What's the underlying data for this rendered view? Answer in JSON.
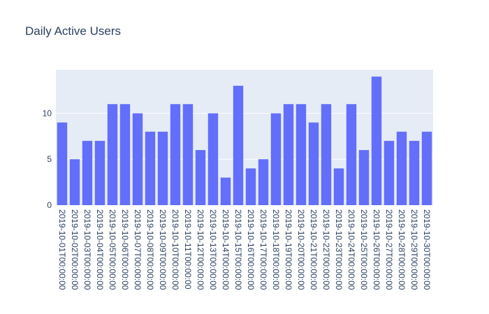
{
  "chart_data": {
    "type": "bar",
    "title": "Daily Active Users",
    "xlabel": "",
    "ylabel": "",
    "categories": [
      "2019-10-01T00:00:00",
      "2019-10-02T00:00:00",
      "2019-10-03T00:00:00",
      "2019-10-04T00:00:00",
      "2019-10-05T00:00:00",
      "2019-10-06T00:00:00",
      "2019-10-07T00:00:00",
      "2019-10-08T00:00:00",
      "2019-10-09T00:00:00",
      "2019-10-10T00:00:00",
      "2019-10-11T00:00:00",
      "2019-10-12T00:00:00",
      "2019-10-13T00:00:00",
      "2019-10-14T00:00:00",
      "2019-10-15T00:00:00",
      "2019-10-16T00:00:00",
      "2019-10-17T00:00:00",
      "2019-10-18T00:00:00",
      "2019-10-19T00:00:00",
      "2019-10-20T00:00:00",
      "2019-10-21T00:00:00",
      "2019-10-22T00:00:00",
      "2019-10-23T00:00:00",
      "2019-10-24T00:00:00",
      "2019-10-25T00:00:00",
      "2019-10-26T00:00:00",
      "2019-10-27T00:00:00",
      "2019-10-28T00:00:00",
      "2019-10-29T00:00:00",
      "2019-10-30T00:00:00"
    ],
    "values": [
      9,
      5,
      7,
      7,
      11,
      11,
      10,
      8,
      8,
      11,
      11,
      6,
      10,
      3,
      13,
      4,
      5,
      10,
      11,
      11,
      9,
      11,
      4,
      11,
      6,
      14,
      7,
      8,
      7,
      8
    ],
    "ylim": [
      0,
      14.74
    ],
    "yticks": [
      0,
      5,
      10
    ],
    "grid": true,
    "legend": "none",
    "colors": {
      "bar": "#636efa",
      "plot_bg": "#e5ecf6",
      "grid": "#ffffff",
      "text": "#2a3f5f"
    }
  }
}
